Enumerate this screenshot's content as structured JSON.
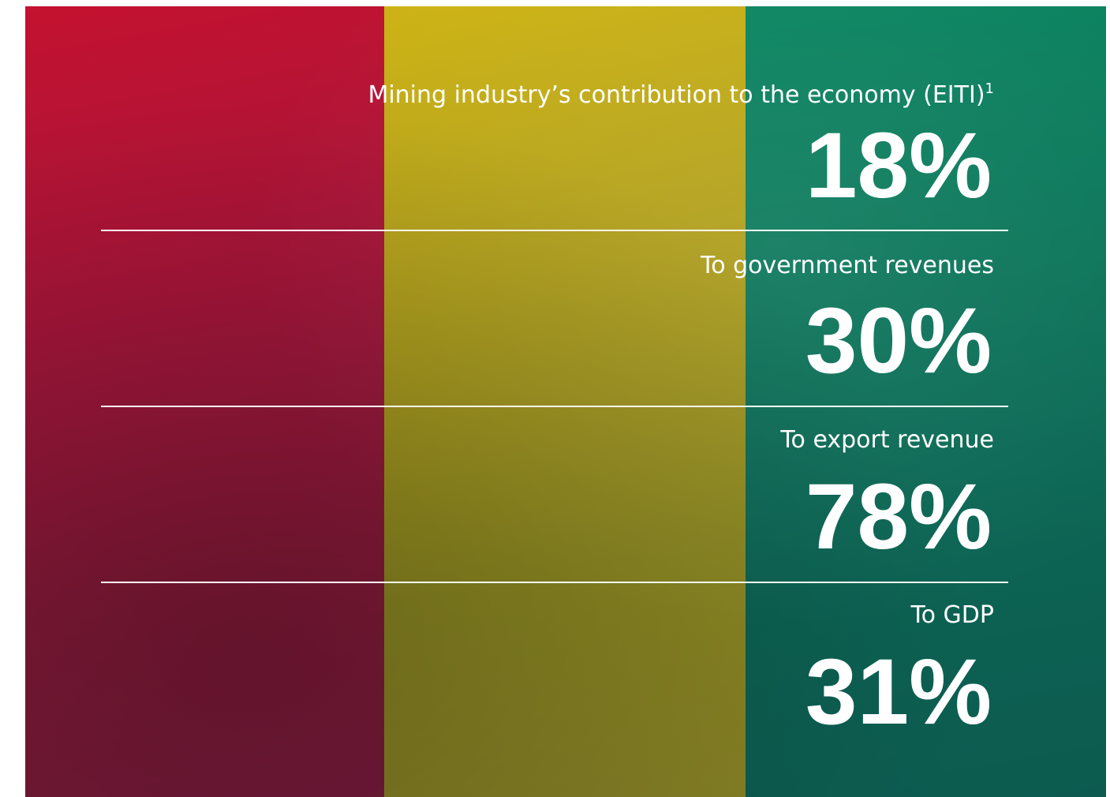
{
  "header": {
    "title": "Mining industry’s contribution to the economy (EITI)",
    "footnote": "1"
  },
  "items": [
    {
      "value": "18%"
    },
    {
      "label": "To government revenues",
      "value": "30%"
    },
    {
      "label": "To export revenue",
      "value": "78%"
    },
    {
      "label": "To GDP",
      "value": "31%"
    }
  ]
}
